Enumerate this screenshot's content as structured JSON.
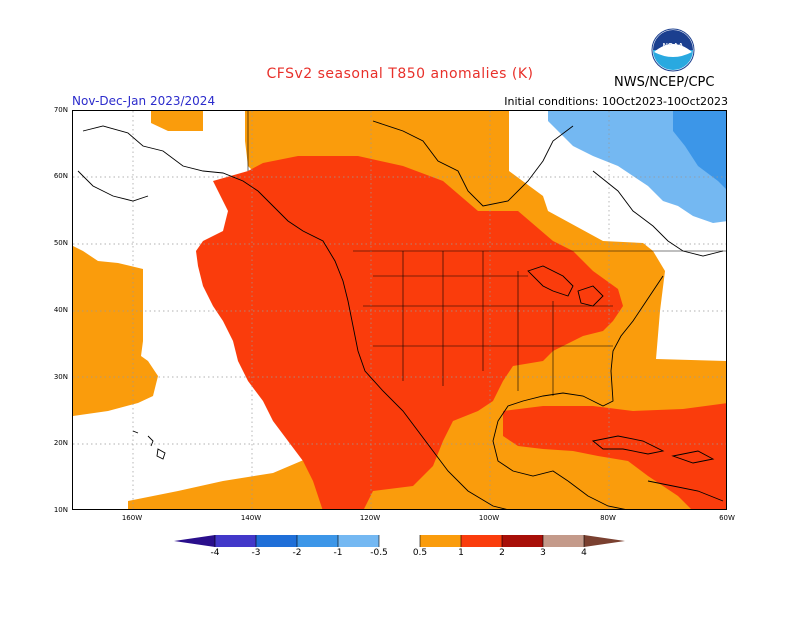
{
  "header": {
    "title": "CFSv2 seasonal T850 anomalies (K)",
    "season": "Nov-Dec-Jan 2023/2024",
    "initial_conditions": "Initial conditions: 10Oct2023-10Oct2023",
    "org": "NWS/NCEP/CPC",
    "logo_text": "NOAA"
  },
  "map": {
    "lat_labels": [
      "70N",
      "60N",
      "50N",
      "40N",
      "30N",
      "20N",
      "10N"
    ],
    "lon_labels": [
      "160W",
      "140W",
      "120W",
      "100W",
      "80W",
      "60W"
    ]
  },
  "colorbar": {
    "labels": [
      "-4",
      "-3",
      "-2",
      "-1",
      "-0.5",
      "0.5",
      "1",
      "2",
      "3",
      "4"
    ],
    "colors": {
      "lt_-4": "#2a0f8c",
      "-4_-3": "#4238c9",
      "-3_-2": "#1f6fd8",
      "-2_-1": "#3c96e8",
      "-1_-0.5": "#74b8f2",
      "-0.5_0.5": "#ffffff",
      "0.5_1": "#fa9c0c",
      "1_2": "#fa3c0c",
      "2_3": "#a80f08",
      "3_4": "#c49a8a",
      "gt_4": "#7a4030"
    }
  },
  "colors": {
    "warm_1": "#fa9c0c",
    "warm_2": "#fa3c0c",
    "cool_1": "#74b8f2",
    "cool_2": "#3c96e8"
  }
}
